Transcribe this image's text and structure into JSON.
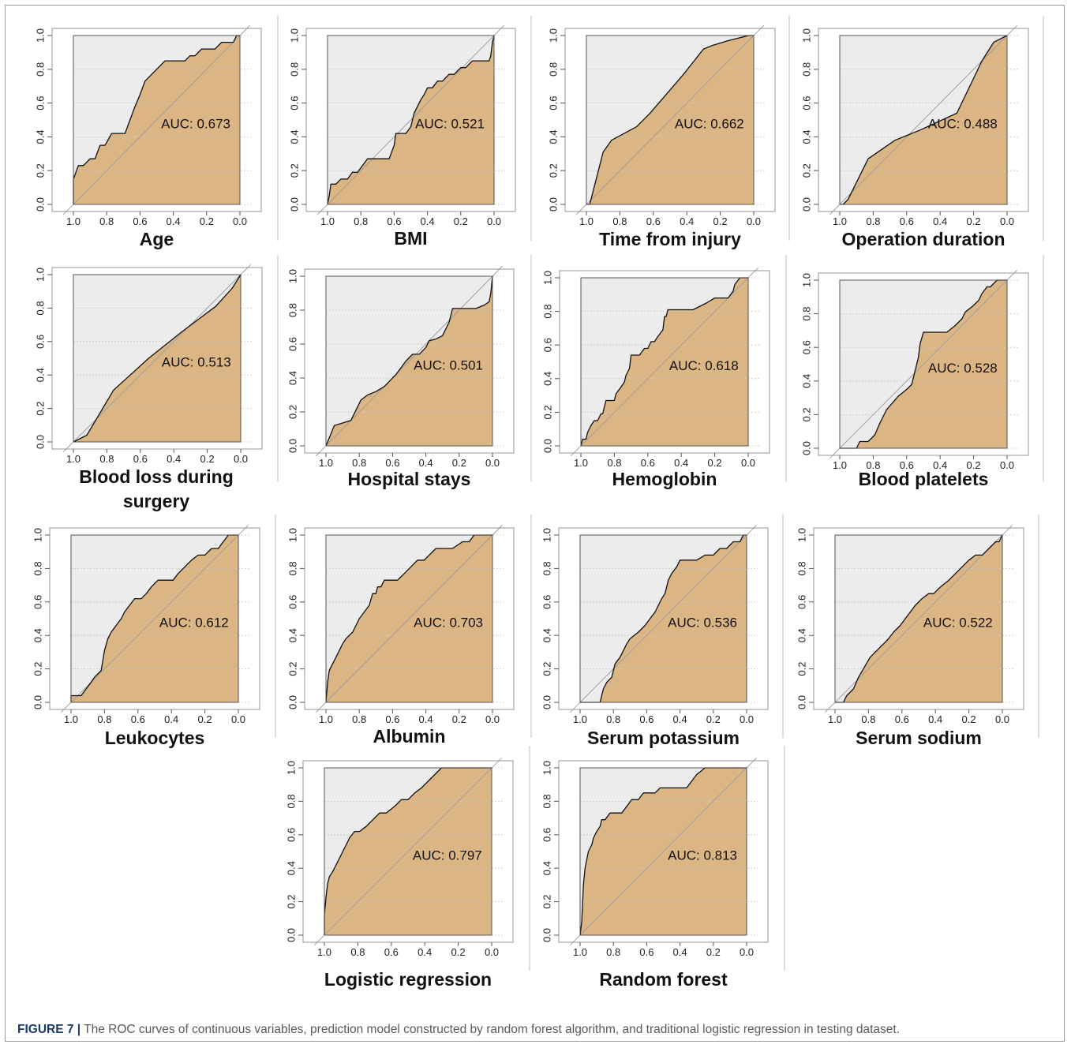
{
  "figure": {
    "caption_label": "FIGURE 7 |",
    "caption_text": " The ROC curves of continuous variables, prediction model constructed by random forest algorithm, and traditional logistic regression in testing dataset."
  },
  "style": {
    "fill_color": "#dcb584",
    "background_color": "#ececec",
    "curve_color": "#111111",
    "diagonal_color": "#9a9a9a"
  },
  "chart_data": [
    {
      "type": "area",
      "title": "Age",
      "auc_label": "AUC: 0.673",
      "x": [
        1.0,
        1.0,
        0.97,
        0.94,
        0.9,
        0.87,
        0.84,
        0.81,
        0.77,
        0.73,
        0.69,
        0.66,
        0.63,
        0.6,
        0.57,
        0.53,
        0.49,
        0.45,
        0.41,
        0.37,
        0.33,
        0.3,
        0.27,
        0.23,
        0.19,
        0.15,
        0.11,
        0.08,
        0.04,
        0.02,
        0.0
      ],
      "y": [
        0.0,
        0.15,
        0.23,
        0.23,
        0.27,
        0.27,
        0.35,
        0.35,
        0.42,
        0.42,
        0.42,
        0.5,
        0.58,
        0.65,
        0.73,
        0.77,
        0.81,
        0.85,
        0.85,
        0.85,
        0.85,
        0.88,
        0.88,
        0.92,
        0.92,
        0.92,
        0.96,
        0.96,
        0.96,
        1.0,
        1.0
      ],
      "xticks": [
        "1.0",
        "0.8",
        "0.6",
        "0.4",
        "0.2",
        "0.0"
      ],
      "yticks": [
        "0.0",
        "0.2",
        "0.4",
        "0.6",
        "0.8",
        "1.0"
      ],
      "xlim": [
        1.0,
        0.0
      ],
      "ylim": [
        0.0,
        1.0
      ]
    },
    {
      "type": "area",
      "title": "BMI",
      "auc_label": "AUC: 0.521",
      "x": [
        1.0,
        0.99,
        0.98,
        0.95,
        0.92,
        0.88,
        0.85,
        0.82,
        0.79,
        0.76,
        0.73,
        0.69,
        0.66,
        0.63,
        0.6,
        0.59,
        0.56,
        0.53,
        0.5,
        0.48,
        0.46,
        0.44,
        0.42,
        0.4,
        0.37,
        0.34,
        0.31,
        0.27,
        0.24,
        0.2,
        0.17,
        0.13,
        0.1,
        0.06,
        0.03,
        0.02,
        0.01,
        0.0
      ],
      "y": [
        0.0,
        0.05,
        0.12,
        0.12,
        0.15,
        0.15,
        0.19,
        0.19,
        0.23,
        0.27,
        0.27,
        0.27,
        0.27,
        0.27,
        0.35,
        0.42,
        0.42,
        0.42,
        0.46,
        0.54,
        0.58,
        0.62,
        0.65,
        0.69,
        0.69,
        0.73,
        0.73,
        0.77,
        0.77,
        0.81,
        0.81,
        0.85,
        0.85,
        0.85,
        0.85,
        0.88,
        0.96,
        1.0
      ],
      "xticks": [
        "1.0",
        "0.8",
        "0.6",
        "0.4",
        "0.2",
        "0.0"
      ],
      "yticks": [
        "0.0",
        "0.2",
        "0.4",
        "0.6",
        "0.8",
        "1.0"
      ],
      "xlim": [
        1.0,
        0.0
      ],
      "ylim": [
        0.0,
        1.0
      ]
    },
    {
      "type": "area",
      "title": "Time from injury",
      "auc_label": "AUC: 0.662",
      "x": [
        1.0,
        0.98,
        0.9,
        0.85,
        0.7,
        0.62,
        0.55,
        0.42,
        0.3,
        0.25,
        0.15,
        0.03,
        0.0
      ],
      "y": [
        0.0,
        0.0,
        0.31,
        0.38,
        0.46,
        0.54,
        0.62,
        0.77,
        0.92,
        0.94,
        0.97,
        1.0,
        1.0
      ],
      "xticks": [
        "1.0",
        "0.8",
        "0.6",
        "0.4",
        "0.2",
        "0.0"
      ],
      "yticks": [
        "0.0",
        "0.2",
        "0.4",
        "0.6",
        "0.8",
        "1.0"
      ],
      "xlim": [
        1.0,
        0.0
      ],
      "ylim": [
        0.0,
        1.0
      ]
    },
    {
      "type": "area",
      "title": "Operation duration",
      "auc_label": "AUC: 0.488",
      "x": [
        1.0,
        0.98,
        0.95,
        0.83,
        0.67,
        0.52,
        0.3,
        0.15,
        0.08,
        0.0
      ],
      "y": [
        0.0,
        0.0,
        0.03,
        0.27,
        0.38,
        0.44,
        0.54,
        0.85,
        0.96,
        1.0
      ],
      "xticks": [
        "1.0",
        "0.8",
        "0.6",
        "0.4",
        "0.2",
        "0.0"
      ],
      "yticks": [
        "0.0",
        "0.2",
        "0.4",
        "0.6",
        "0.8",
        "1.0"
      ],
      "xlim": [
        1.0,
        0.0
      ],
      "ylim": [
        0.0,
        1.0
      ]
    },
    {
      "type": "area",
      "title": "Blood loss during surgery",
      "auc_label": "AUC: 0.513",
      "x": [
        1.0,
        0.92,
        0.76,
        0.55,
        0.35,
        0.15,
        0.05,
        0.0
      ],
      "y": [
        0.0,
        0.04,
        0.31,
        0.5,
        0.66,
        0.81,
        0.92,
        1.0
      ],
      "xticks": [
        "1.0",
        "0.8",
        "0.6",
        "0.4",
        "0.2",
        "0.0"
      ],
      "yticks": [
        "0.0",
        "0.2",
        "0.4",
        "0.6",
        "0.8",
        "1.0"
      ],
      "xlim": [
        1.0,
        0.0
      ],
      "ylim": [
        0.0,
        1.0
      ]
    },
    {
      "type": "area",
      "title": "Hospital stays",
      "auc_label": "AUC: 0.501",
      "x": [
        1.0,
        0.95,
        0.85,
        0.79,
        0.75,
        0.7,
        0.65,
        0.58,
        0.52,
        0.48,
        0.44,
        0.4,
        0.38,
        0.34,
        0.3,
        0.26,
        0.24,
        0.2,
        0.15,
        0.1,
        0.05,
        0.02,
        0.01,
        0.0
      ],
      "y": [
        0.0,
        0.12,
        0.15,
        0.27,
        0.3,
        0.32,
        0.35,
        0.42,
        0.5,
        0.54,
        0.54,
        0.58,
        0.62,
        0.63,
        0.65,
        0.73,
        0.81,
        0.81,
        0.81,
        0.81,
        0.83,
        0.85,
        0.9,
        1.0
      ],
      "xticks": [
        "1.0",
        "0.8",
        "0.6",
        "0.4",
        "0.2",
        "0.0"
      ],
      "yticks": [
        "0.0",
        "0.2",
        "0.4",
        "0.6",
        "0.8",
        "1.0"
      ],
      "xlim": [
        1.0,
        0.0
      ],
      "ylim": [
        0.0,
        1.0
      ]
    },
    {
      "type": "area",
      "title": "Hemoglobin",
      "auc_label": "AUC: 0.618",
      "x": [
        1.0,
        0.99,
        0.97,
        0.96,
        0.94,
        0.92,
        0.9,
        0.88,
        0.87,
        0.85,
        0.8,
        0.79,
        0.76,
        0.74,
        0.73,
        0.71,
        0.7,
        0.68,
        0.65,
        0.62,
        0.6,
        0.58,
        0.56,
        0.54,
        0.51,
        0.5,
        0.49,
        0.48,
        0.38,
        0.33,
        0.25,
        0.2,
        0.12,
        0.09,
        0.08,
        0.05,
        0.0
      ],
      "y": [
        0.0,
        0.04,
        0.04,
        0.08,
        0.12,
        0.15,
        0.15,
        0.19,
        0.19,
        0.27,
        0.27,
        0.31,
        0.35,
        0.38,
        0.42,
        0.46,
        0.54,
        0.54,
        0.54,
        0.58,
        0.58,
        0.62,
        0.62,
        0.65,
        0.69,
        0.77,
        0.77,
        0.81,
        0.81,
        0.81,
        0.85,
        0.88,
        0.88,
        0.92,
        0.96,
        1.0,
        1.0
      ],
      "xticks": [
        "1.0",
        "0.8",
        "0.6",
        "0.4",
        "0.2",
        "0.0"
      ],
      "yticks": [
        "0.0",
        "0.2",
        "0.4",
        "0.6",
        "0.8",
        "1.0"
      ],
      "xlim": [
        1.0,
        0.0
      ],
      "ylim": [
        0.0,
        1.0
      ]
    },
    {
      "type": "area",
      "title": "Blood platelets",
      "auc_label": "AUC: 0.528",
      "x": [
        1.0,
        0.9,
        0.88,
        0.83,
        0.79,
        0.76,
        0.72,
        0.65,
        0.6,
        0.57,
        0.55,
        0.53,
        0.52,
        0.5,
        0.4,
        0.36,
        0.31,
        0.27,
        0.25,
        0.2,
        0.17,
        0.15,
        0.12,
        0.1,
        0.06,
        0.0
      ],
      "y": [
        0.0,
        0.0,
        0.04,
        0.04,
        0.08,
        0.15,
        0.23,
        0.31,
        0.35,
        0.38,
        0.46,
        0.54,
        0.62,
        0.69,
        0.69,
        0.69,
        0.73,
        0.77,
        0.81,
        0.85,
        0.88,
        0.92,
        0.96,
        0.96,
        1.0,
        1.0
      ],
      "xticks": [
        "1.0",
        "0.8",
        "0.6",
        "0.4",
        "0.2",
        "0.0"
      ],
      "yticks": [
        "0.0",
        "0.2",
        "0.4",
        "0.6",
        "0.8",
        "1.0"
      ],
      "xlim": [
        1.0,
        0.0
      ],
      "ylim": [
        0.0,
        1.0
      ]
    },
    {
      "type": "area",
      "title": "Leukocytes",
      "auc_label": "AUC: 0.612",
      "x": [
        1.0,
        1.0,
        0.94,
        0.91,
        0.88,
        0.86,
        0.82,
        0.8,
        0.78,
        0.76,
        0.73,
        0.7,
        0.68,
        0.65,
        0.62,
        0.58,
        0.55,
        0.52,
        0.48,
        0.45,
        0.39,
        0.36,
        0.32,
        0.28,
        0.24,
        0.2,
        0.16,
        0.12,
        0.09,
        0.06,
        0.0
      ],
      "y": [
        0.0,
        0.04,
        0.04,
        0.08,
        0.12,
        0.15,
        0.19,
        0.31,
        0.38,
        0.42,
        0.46,
        0.5,
        0.54,
        0.58,
        0.62,
        0.62,
        0.65,
        0.69,
        0.73,
        0.73,
        0.73,
        0.77,
        0.81,
        0.85,
        0.88,
        0.88,
        0.92,
        0.92,
        0.96,
        1.0,
        1.0
      ],
      "xticks": [
        "1.0",
        "0.8",
        "0.6",
        "0.4",
        "0.2",
        "0.0"
      ],
      "yticks": [
        "0.0",
        "0.2",
        "0.4",
        "0.6",
        "0.8",
        "1.0"
      ],
      "xlim": [
        1.0,
        0.0
      ],
      "ylim": [
        0.0,
        1.0
      ]
    },
    {
      "type": "area",
      "title": "Albumin",
      "auc_label": "AUC: 0.703",
      "x": [
        1.0,
        0.99,
        0.98,
        0.96,
        0.94,
        0.92,
        0.9,
        0.88,
        0.86,
        0.84,
        0.82,
        0.8,
        0.77,
        0.74,
        0.72,
        0.7,
        0.69,
        0.67,
        0.65,
        0.61,
        0.57,
        0.53,
        0.49,
        0.45,
        0.41,
        0.38,
        0.34,
        0.3,
        0.24,
        0.18,
        0.14,
        0.11,
        0.0
      ],
      "y": [
        0.0,
        0.12,
        0.19,
        0.23,
        0.27,
        0.31,
        0.35,
        0.38,
        0.4,
        0.42,
        0.46,
        0.5,
        0.54,
        0.58,
        0.65,
        0.65,
        0.69,
        0.69,
        0.73,
        0.73,
        0.73,
        0.77,
        0.81,
        0.85,
        0.85,
        0.88,
        0.92,
        0.92,
        0.92,
        0.96,
        0.96,
        1.0,
        1.0
      ],
      "xticks": [
        "1.0",
        "0.8",
        "0.6",
        "0.4",
        "0.2",
        "0.0"
      ],
      "yticks": [
        "0.0",
        "0.2",
        "0.4",
        "0.6",
        "0.8",
        "1.0"
      ],
      "xlim": [
        1.0,
        0.0
      ],
      "ylim": [
        0.0,
        1.0
      ]
    },
    {
      "type": "area",
      "title": "Serum potassium",
      "auc_label": "AUC: 0.536",
      "x": [
        1.0,
        0.88,
        0.86,
        0.84,
        0.81,
        0.79,
        0.76,
        0.74,
        0.72,
        0.7,
        0.65,
        0.61,
        0.58,
        0.55,
        0.53,
        0.51,
        0.49,
        0.47,
        0.45,
        0.42,
        0.4,
        0.35,
        0.3,
        0.25,
        0.2,
        0.16,
        0.12,
        0.08,
        0.04,
        0.02,
        0.0
      ],
      "y": [
        0.0,
        0.0,
        0.08,
        0.12,
        0.15,
        0.23,
        0.27,
        0.31,
        0.35,
        0.38,
        0.42,
        0.46,
        0.5,
        0.54,
        0.58,
        0.62,
        0.65,
        0.73,
        0.77,
        0.81,
        0.85,
        0.85,
        0.85,
        0.88,
        0.88,
        0.92,
        0.92,
        0.96,
        0.96,
        1.0,
        1.0
      ],
      "xticks": [
        "1.0",
        "0.8",
        "0.6",
        "0.4",
        "0.2",
        "0.0"
      ],
      "yticks": [
        "0.0",
        "0.2",
        "0.4",
        "0.6",
        "0.8",
        "1.0"
      ],
      "xlim": [
        1.0,
        0.0
      ],
      "ylim": [
        0.0,
        1.0
      ]
    },
    {
      "type": "area",
      "title": "Serum sodium",
      "auc_label": "AUC: 0.522",
      "x": [
        1.0,
        0.95,
        0.93,
        0.89,
        0.86,
        0.83,
        0.79,
        0.75,
        0.71,
        0.68,
        0.65,
        0.61,
        0.58,
        0.55,
        0.52,
        0.48,
        0.44,
        0.41,
        0.37,
        0.32,
        0.28,
        0.24,
        0.2,
        0.16,
        0.12,
        0.08,
        0.04,
        0.02,
        0.0
      ],
      "y": [
        0.0,
        0.0,
        0.04,
        0.08,
        0.15,
        0.2,
        0.27,
        0.31,
        0.35,
        0.38,
        0.42,
        0.46,
        0.5,
        0.54,
        0.58,
        0.62,
        0.65,
        0.65,
        0.69,
        0.73,
        0.77,
        0.81,
        0.85,
        0.88,
        0.88,
        0.92,
        0.96,
        0.96,
        1.0
      ],
      "xticks": [
        "1.0",
        "0.8",
        "0.6",
        "0.4",
        "0.2",
        "0.0"
      ],
      "yticks": [
        "0.0",
        "0.2",
        "0.4",
        "0.6",
        "0.8",
        "1.0"
      ],
      "xlim": [
        1.0,
        0.0
      ],
      "ylim": [
        0.0,
        1.0
      ]
    },
    {
      "type": "area",
      "title": "Logistic regression",
      "auc_label": "AUC: 0.797",
      "x": [
        1.0,
        1.0,
        0.99,
        0.98,
        0.97,
        0.95,
        0.93,
        0.91,
        0.89,
        0.87,
        0.85,
        0.82,
        0.79,
        0.75,
        0.71,
        0.67,
        0.63,
        0.58,
        0.54,
        0.5,
        0.46,
        0.42,
        0.38,
        0.34,
        0.3,
        0.27,
        0.2,
        0.0
      ],
      "y": [
        0.0,
        0.12,
        0.23,
        0.31,
        0.35,
        0.38,
        0.42,
        0.46,
        0.5,
        0.54,
        0.58,
        0.62,
        0.62,
        0.65,
        0.69,
        0.73,
        0.73,
        0.77,
        0.81,
        0.81,
        0.85,
        0.88,
        0.92,
        0.96,
        1.0,
        1.0,
        1.0,
        1.0
      ],
      "xticks": [
        "1.0",
        "0.8",
        "0.6",
        "0.4",
        "0.2",
        "0.0"
      ],
      "yticks": [
        "0.0",
        "0.2",
        "0.4",
        "0.6",
        "0.8",
        "1.0"
      ],
      "xlim": [
        1.0,
        0.0
      ],
      "ylim": [
        0.0,
        1.0
      ]
    },
    {
      "type": "area",
      "title": "Random forest",
      "auc_label": "AUC: 0.813",
      "x": [
        1.0,
        0.99,
        0.98,
        0.97,
        0.96,
        0.95,
        0.93,
        0.92,
        0.9,
        0.88,
        0.87,
        0.85,
        0.82,
        0.79,
        0.75,
        0.72,
        0.69,
        0.65,
        0.62,
        0.6,
        0.58,
        0.55,
        0.52,
        0.48,
        0.44,
        0.4,
        0.36,
        0.3,
        0.25,
        0.2,
        0.0
      ],
      "y": [
        0.0,
        0.08,
        0.3,
        0.4,
        0.45,
        0.5,
        0.54,
        0.58,
        0.62,
        0.65,
        0.69,
        0.69,
        0.73,
        0.73,
        0.73,
        0.77,
        0.81,
        0.81,
        0.85,
        0.85,
        0.85,
        0.85,
        0.88,
        0.88,
        0.88,
        0.88,
        0.88,
        0.96,
        1.0,
        1.0,
        1.0
      ],
      "xticks": [
        "1.0",
        "0.8",
        "0.6",
        "0.4",
        "0.2",
        "0.0"
      ],
      "yticks": [
        "0.0",
        "0.2",
        "0.4",
        "0.6",
        "0.8",
        "1.0"
      ],
      "xlim": [
        1.0,
        0.0
      ],
      "ylim": [
        0.0,
        1.0
      ]
    }
  ]
}
